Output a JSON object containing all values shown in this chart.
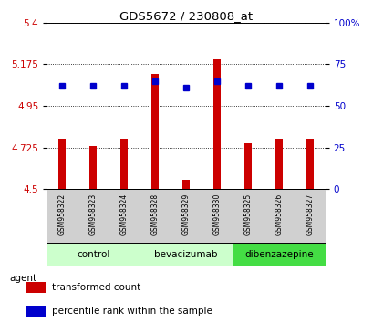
{
  "title": "GDS5672 / 230808_at",
  "samples": [
    "GSM958322",
    "GSM958323",
    "GSM958324",
    "GSM958328",
    "GSM958329",
    "GSM958330",
    "GSM958325",
    "GSM958326",
    "GSM958327"
  ],
  "red_values": [
    4.77,
    4.73,
    4.77,
    5.12,
    4.55,
    5.2,
    4.748,
    4.77,
    4.77
  ],
  "blue_percentiles": [
    62,
    62,
    62,
    65,
    61,
    65,
    62,
    62,
    62
  ],
  "y_min": 4.5,
  "y_max": 5.4,
  "y_ticks_red": [
    4.5,
    4.725,
    4.95,
    5.175,
    5.4
  ],
  "y_ticks_blue": [
    0,
    25,
    50,
    75,
    100
  ],
  "groups": [
    {
      "label": "control",
      "indices": [
        0,
        1,
        2
      ],
      "color": "#ccffcc"
    },
    {
      "label": "bevacizumab",
      "indices": [
        3,
        4,
        5
      ],
      "color": "#ccffcc"
    },
    {
      "label": "dibenzazepine",
      "indices": [
        6,
        7,
        8
      ],
      "color": "#44dd44"
    }
  ],
  "bar_color": "#cc0000",
  "dot_color": "#0000cc",
  "baseline": 4.5,
  "bar_width": 0.25,
  "plot_bg_color": "#ffffff",
  "grid_color": "#000000",
  "tick_label_color_left": "#cc0000",
  "tick_label_color_right": "#0000cc",
  "legend_items": [
    "transformed count",
    "percentile rank within the sample"
  ],
  "sample_box_color": "#d0d0d0"
}
